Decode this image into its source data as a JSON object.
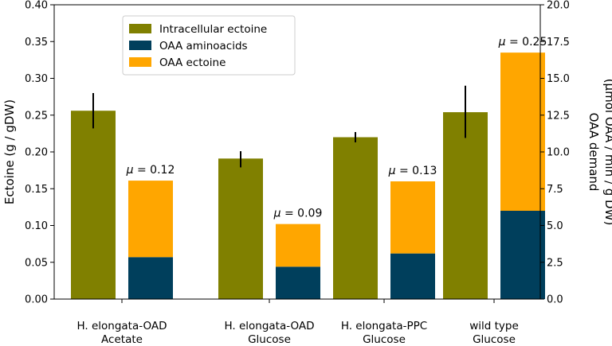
{
  "chart_data": {
    "type": "bar",
    "categories": [
      {
        "line1": "H. elongata-OAD",
        "line2": "Acetate"
      },
      {
        "line1": "H. elongata-OAD",
        "line2": "Glucose"
      },
      {
        "line1": "H. elongata-PPC",
        "line2": "Glucose"
      },
      {
        "line1": "wild type",
        "line2": "Glucose"
      }
    ],
    "left_axis": {
      "label": "Ectoine (g / gDW)",
      "ylim": [
        0,
        0.4
      ],
      "ticks": [
        "0.00",
        "0.05",
        "0.10",
        "0.15",
        "0.20",
        "0.25",
        "0.30",
        "0.35",
        "0.40"
      ]
    },
    "right_axis": {
      "label_line1": "OAA demand",
      "label_line2": "(µmol OAA / min / g DW)",
      "ylim": [
        0,
        20
      ],
      "ticks": [
        "0.0",
        "2.5",
        "5.0",
        "7.5",
        "10.0",
        "12.5",
        "15.0",
        "17.5",
        "20.0"
      ]
    },
    "series": [
      {
        "name": "Intracellular ectoine",
        "color": "#808000",
        "axis": "left",
        "values": [
          0.256,
          0.191,
          0.22,
          0.254
        ],
        "error_low": [
          0.232,
          0.179,
          0.213,
          0.219
        ],
        "error_high": [
          0.28,
          0.201,
          0.227,
          0.29
        ]
      },
      {
        "name": "OAA aminoacids",
        "color": "#003f5c",
        "axis": "right",
        "values": [
          2.85,
          2.2,
          3.1,
          6.0
        ]
      },
      {
        "name": "OAA ectoine",
        "color": "#ffa600",
        "axis": "right",
        "values": [
          5.2,
          2.9,
          4.9,
          10.75
        ]
      }
    ],
    "annotations": [
      {
        "symbol": "μ",
        "text": " = 0.12",
        "category": 0
      },
      {
        "symbol": "μ",
        "text": " = 0.09",
        "category": 1
      },
      {
        "symbol": "μ",
        "text": " = 0.13",
        "category": 2
      },
      {
        "symbol": "μ",
        "text": " = 0.25",
        "category": 3
      }
    ],
    "legend_position": "upper-left-center"
  }
}
